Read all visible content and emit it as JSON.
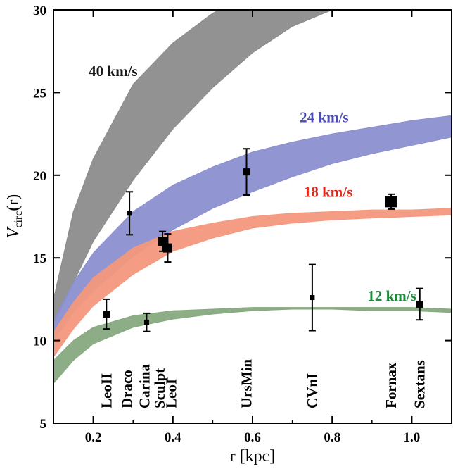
{
  "chart_data": {
    "type": "line",
    "xlabel": "r [kpc]",
    "ylabel": "V_circ(r)",
    "xlim": [
      0.1,
      1.1
    ],
    "ylim": [
      5,
      30
    ],
    "x_ticks": [
      0.2,
      0.4,
      0.6,
      0.8,
      1.0
    ],
    "x_tick_labels": [
      "0.2",
      "0.4",
      "0.6",
      "0.8",
      "1.0"
    ],
    "y_ticks": [
      5,
      10,
      15,
      20,
      25,
      30
    ],
    "y_tick_labels": [
      "5",
      "10",
      "15",
      "20",
      "25",
      "30"
    ],
    "bands": [
      {
        "label": "40 km/s",
        "color": "#8c8c8c",
        "x": [
          0.1,
          0.15,
          0.2,
          0.3,
          0.4,
          0.5,
          0.6,
          0.7,
          0.8,
          0.9
        ],
        "lower": [
          11.0,
          13.5,
          16.0,
          19.7,
          22.8,
          25.3,
          27.4,
          29.0,
          30.0,
          30.8
        ],
        "upper": [
          12.5,
          17.8,
          21.0,
          25.5,
          28.0,
          29.8,
          31.0,
          31.8,
          32.3,
          32.6
        ]
      },
      {
        "label": "24 km/s",
        "color": "#8b8fcf",
        "x": [
          0.1,
          0.15,
          0.2,
          0.3,
          0.4,
          0.5,
          0.6,
          0.7,
          0.8,
          0.9,
          1.0,
          1.1
        ],
        "lower": [
          10.0,
          11.7,
          13.0,
          15.1,
          16.7,
          18.0,
          19.0,
          19.9,
          20.7,
          21.3,
          21.8,
          22.3
        ],
        "upper": [
          11.2,
          13.5,
          15.3,
          17.8,
          19.4,
          20.5,
          21.4,
          22.0,
          22.5,
          22.9,
          23.3,
          23.6
        ]
      },
      {
        "label": "18 km/s",
        "color": "#f3987d",
        "x": [
          0.1,
          0.15,
          0.2,
          0.3,
          0.4,
          0.5,
          0.6,
          0.7,
          0.8,
          0.9,
          1.0,
          1.1
        ],
        "lower": [
          9.0,
          10.7,
          12.1,
          14.0,
          15.4,
          16.2,
          16.8,
          17.1,
          17.3,
          17.4,
          17.5,
          17.6
        ],
        "upper": [
          10.5,
          12.3,
          13.8,
          15.6,
          16.6,
          17.1,
          17.5,
          17.7,
          17.8,
          17.9,
          17.9,
          18.0
        ]
      },
      {
        "label": "12 km/s",
        "color": "#86a97e",
        "x": [
          0.1,
          0.15,
          0.2,
          0.3,
          0.4,
          0.5,
          0.6,
          0.7,
          0.8,
          0.9,
          1.0,
          1.1
        ],
        "lower": [
          7.4,
          8.8,
          9.8,
          10.8,
          11.3,
          11.6,
          11.8,
          11.9,
          11.9,
          11.8,
          11.8,
          11.7
        ],
        "upper": [
          8.8,
          10.0,
          10.8,
          11.5,
          11.8,
          11.9,
          12.0,
          12.0,
          12.0,
          12.0,
          12.0,
          11.9
        ]
      }
    ],
    "band_labels": [
      {
        "text": "40 km/s",
        "x": 0.25,
        "y": 26.3,
        "color": "#1a1a1a"
      },
      {
        "text": "24 km/s",
        "x": 0.78,
        "y": 23.5,
        "color": "#4a4cb0"
      },
      {
        "text": "18 km/s",
        "x": 0.79,
        "y": 19.0,
        "color": "#e0281a"
      },
      {
        "text": "12 km/s",
        "x": 0.95,
        "y": 12.7,
        "color": "#1e8c3a"
      }
    ],
    "points": [
      {
        "name": "LeoII",
        "x": 0.233,
        "y": 11.6,
        "err": 0.9,
        "size": "medium"
      },
      {
        "name": "Draco",
        "x": 0.291,
        "y": 17.7,
        "err": 1.3,
        "size": "small"
      },
      {
        "name": "Carina",
        "x": 0.334,
        "y": 11.1,
        "err": 0.55,
        "size": "small"
      },
      {
        "name": "Sculpt",
        "x": 0.374,
        "y": 16.0,
        "err": 0.6,
        "size": "large"
      },
      {
        "name": "LeoI",
        "x": 0.387,
        "y": 15.6,
        "err": 0.85,
        "size": "large"
      },
      {
        "name": "UrsMin",
        "x": 0.585,
        "y": 20.2,
        "err": 1.4,
        "size": "medium"
      },
      {
        "name": "CVnI",
        "x": 0.75,
        "y": 12.6,
        "err": 2.0,
        "size": "small"
      },
      {
        "name": "Fornax",
        "x": 0.948,
        "y": 18.4,
        "err": 0.45,
        "size": "xlarge"
      },
      {
        "name": "Sextans",
        "x": 1.02,
        "y": 12.2,
        "err": 0.95,
        "size": "medium"
      }
    ],
    "galaxy_labels": [
      {
        "text": "LeoII",
        "x": 0.233
      },
      {
        "text": "Draco",
        "x": 0.285
      },
      {
        "text": "Carina",
        "x": 0.329
      },
      {
        "text": "Sculpt",
        "x": 0.367
      },
      {
        "text": "LeoI",
        "x": 0.396
      },
      {
        "text": "UrsMin",
        "x": 0.585
      },
      {
        "text": "CVnI",
        "x": 0.75
      },
      {
        "text": "Fornax",
        "x": 0.948
      },
      {
        "text": "Sextans",
        "x": 1.02
      }
    ]
  }
}
